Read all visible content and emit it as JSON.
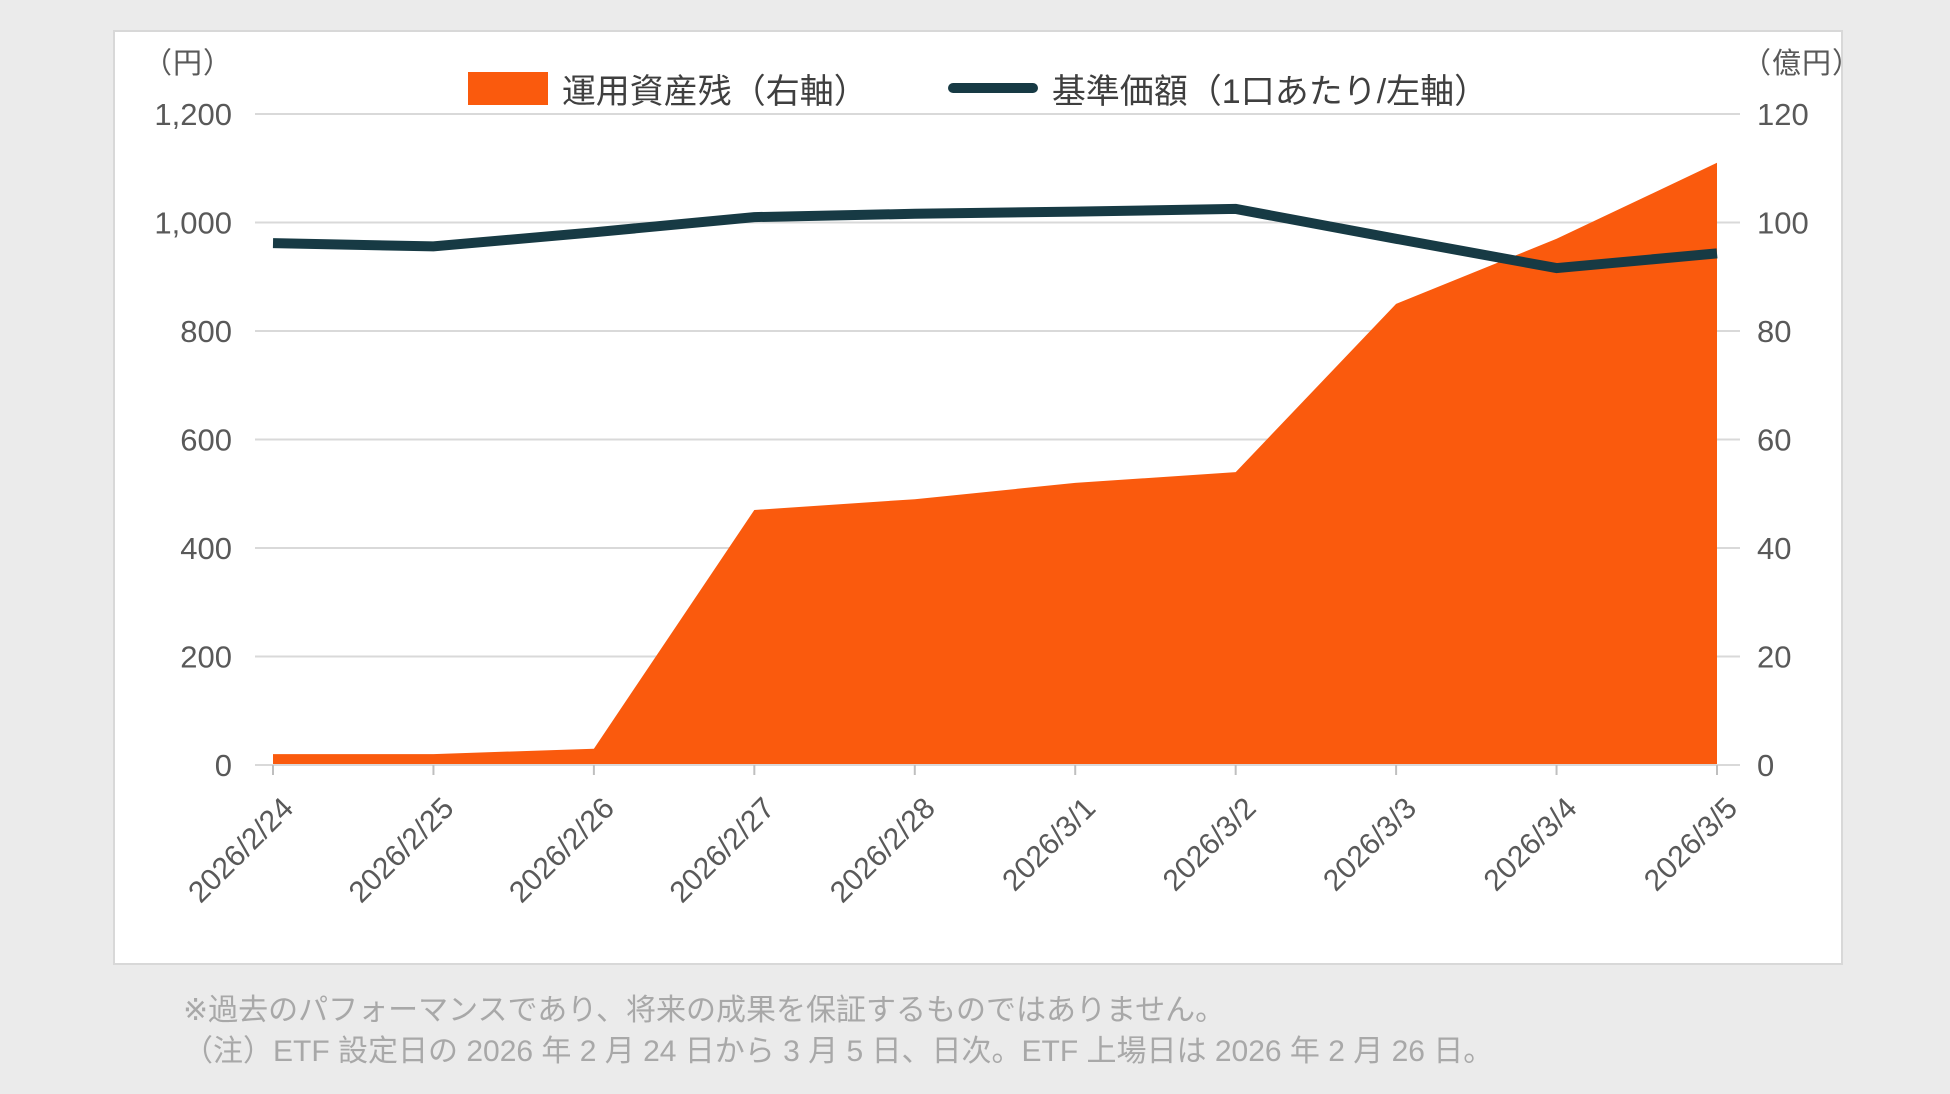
{
  "colors": {
    "background": "#ebebeb",
    "panel": "#ffffff",
    "panel_border": "#d8d8d8",
    "gridline": "#d9d9d9",
    "axis_line": "#d9d9d9",
    "tick_mark": "#bfbfbf",
    "area": "#fa5a0d",
    "line": "#173a44",
    "axis_text": "#595959",
    "legend_text": "#3f3f3f",
    "footnote_text": "#a8a8a8"
  },
  "legend": {
    "area_label": "運用資産残（右軸）",
    "line_label": "基準価額（1口あたり/左軸）"
  },
  "footnotes": {
    "line1": "※過去のパフォーマンスであり、将来の成果を保証するものではありません。",
    "line2": "（注）ETF 設定日の 2026 年 2 月 24 日から 3 月 5 日、日次。ETF 上場日は 2026 年 2 月 26 日。"
  },
  "chart_data": {
    "type": "area",
    "subtype": "dual-axis area + line",
    "categories": [
      "2026/2/24",
      "2026/2/25",
      "2026/2/26",
      "2026/2/27",
      "2026/2/28",
      "2026/3/1",
      "2026/3/2",
      "2026/3/3",
      "2026/3/4",
      "2026/3/5"
    ],
    "series": [
      {
        "name": "運用資産残（右軸）",
        "type": "area",
        "axis": "right",
        "color": "#fa5a0d",
        "values": [
          2,
          2,
          3,
          47,
          49,
          52,
          54,
          85,
          97,
          111
        ]
      },
      {
        "name": "基準価額（1口あたり/左軸）",
        "type": "line",
        "axis": "left",
        "color": "#173a44",
        "values": [
          962,
          956,
          982,
          1010,
          1016,
          1020,
          1025,
          970,
          916,
          943
        ]
      }
    ],
    "left_axis": {
      "unit": "（円）",
      "min": 0,
      "max": 1200,
      "step": 200,
      "ticks": [
        "1,200",
        "1,000",
        "800",
        "600",
        "400",
        "200",
        "0"
      ]
    },
    "right_axis": {
      "unit": "（億円）",
      "min": 0,
      "max": 120,
      "step": 20,
      "ticks": [
        "120",
        "100",
        "80",
        "60",
        "40",
        "20",
        "0"
      ]
    },
    "grid": true,
    "legend_position": "top-center",
    "x_label_rotation_deg": -45
  }
}
